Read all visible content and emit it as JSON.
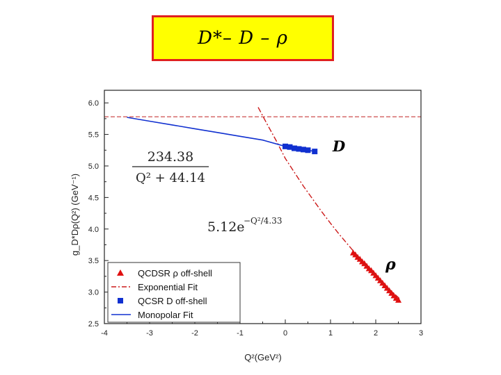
{
  "title_box": {
    "text": "D*– D – ρ"
  },
  "chart_data": {
    "type": "line",
    "xlabel": "Q²(GeV²)",
    "ylabel": "g_D*Dρ(Q²) (GeV⁻¹)",
    "xlim": [
      -4,
      3
    ],
    "ylim": [
      2.5,
      6.2
    ],
    "xticks": [
      -4,
      -3,
      -2,
      -1,
      0,
      1,
      2,
      3
    ],
    "yticks": [
      2.5,
      3.0,
      3.5,
      4.0,
      4.5,
      5.0,
      5.5,
      6.0
    ],
    "xtick_labels": [
      "-4",
      "-3",
      "-2",
      "-1",
      "0",
      "1",
      "2",
      "3"
    ],
    "ytick_labels": [
      "2.5",
      "3.0",
      "3.5",
      "4.0",
      "4.5",
      "5.0",
      "5.5",
      "6.0"
    ],
    "reference_line_y": 5.78,
    "series": [
      {
        "name": "QCDSR ρ off-shell",
        "kind": "scatter",
        "marker": "triangle",
        "color": "#e01010",
        "x": [
          1.5,
          1.55,
          1.6,
          1.65,
          1.7,
          1.75,
          1.8,
          1.85,
          1.9,
          1.95,
          2.0,
          2.05,
          2.1,
          2.15,
          2.2,
          2.25,
          2.3,
          2.35,
          2.4,
          2.45,
          2.5
        ],
        "y": [
          3.62,
          3.59,
          3.55,
          3.52,
          3.48,
          3.45,
          3.41,
          3.37,
          3.34,
          3.3,
          3.26,
          3.22,
          3.18,
          3.14,
          3.1,
          3.06,
          3.02,
          2.98,
          2.94,
          2.9,
          2.87
        ]
      },
      {
        "name": "Exponential Fit",
        "kind": "line",
        "style": "dash-dot",
        "color": "#cc1a1a",
        "x": [
          -0.6,
          -0.4,
          -0.2,
          0.0,
          0.2,
          0.4,
          0.6,
          0.8,
          1.0,
          1.2,
          1.4,
          1.6,
          1.8,
          2.0,
          2.2,
          2.4,
          2.55
        ],
        "y": [
          5.93,
          5.66,
          5.4,
          5.12,
          4.9,
          4.68,
          4.48,
          4.28,
          4.09,
          3.91,
          3.74,
          3.57,
          3.41,
          3.26,
          3.11,
          2.98,
          2.88
        ]
      },
      {
        "name": "QCSR D off-shell",
        "kind": "scatter",
        "marker": "square",
        "color": "#1030d0",
        "x": [
          0.0,
          0.1,
          0.2,
          0.3,
          0.4,
          0.5,
          0.65
        ],
        "y": [
          5.31,
          5.3,
          5.28,
          5.27,
          5.26,
          5.25,
          5.23
        ]
      },
      {
        "name": "Monopolar Fit",
        "kind": "line",
        "style": "solid",
        "color": "#1030d0",
        "x": [
          -3.5,
          -3.0,
          -2.5,
          -2.0,
          -1.5,
          -1.0,
          -0.5,
          0.0,
          0.5,
          0.65
        ],
        "y": [
          5.77,
          5.71,
          5.65,
          5.59,
          5.53,
          5.47,
          5.41,
          5.31,
          5.25,
          5.23
        ]
      }
    ],
    "legend": {
      "placement": "bottom-left"
    },
    "annotations": {
      "mono_numerator": "234.38",
      "mono_denominator": "Q² + 44.14",
      "exp_base": "5.12e",
      "exp_power": "−Q²/4.33",
      "curve_D": "D",
      "curve_rho": "ρ"
    }
  }
}
